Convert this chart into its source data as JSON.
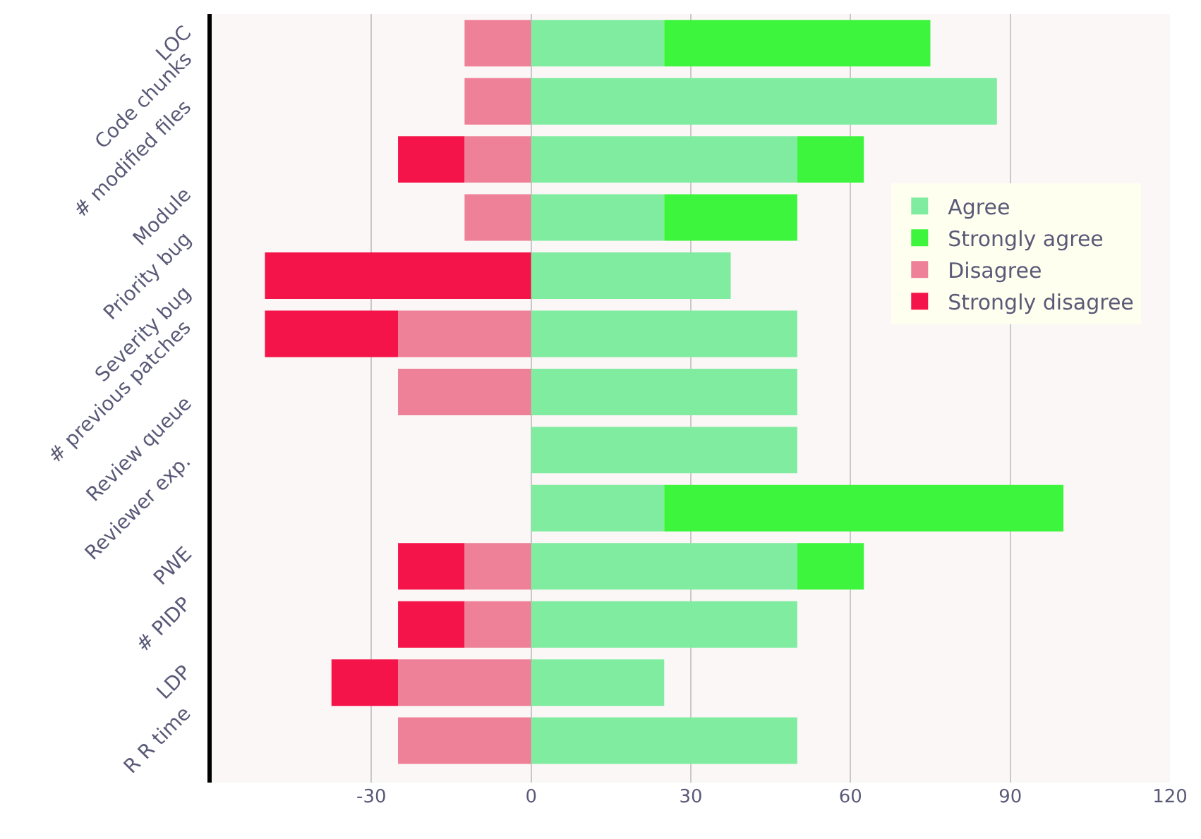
{
  "chart_data": {
    "type": "bar",
    "orientation": "horizontal",
    "stacked": true,
    "categories": [
      "LOC",
      "Code chunks",
      "# modified files",
      "Module",
      "Priority bug",
      "Severity bug",
      "# previous patches",
      "Review queue",
      "Reviewer exp.",
      "PWE",
      "# PIDP",
      "LDP",
      "R R time"
    ],
    "series": [
      {
        "name": "Agree",
        "color": "#80eca0",
        "values": [
          25,
          87.5,
          50,
          25,
          37.5,
          50,
          50,
          50,
          25,
          50,
          50,
          25,
          50
        ]
      },
      {
        "name": "Strongly agree",
        "color": "#3ef53e",
        "values": [
          50,
          null,
          12.5,
          25,
          null,
          null,
          null,
          null,
          75,
          12.5,
          null,
          null,
          null
        ]
      },
      {
        "name": "Disagree",
        "color": "#ee8098",
        "values": [
          -12.5,
          -12.5,
          -12.5,
          -12.5,
          null,
          -25,
          -25,
          null,
          null,
          -12.5,
          -12.5,
          -25,
          -25
        ]
      },
      {
        "name": "Strongly disagree",
        "color": "#f5144a",
        "values": [
          null,
          null,
          -12.5,
          null,
          -50,
          -25,
          null,
          null,
          null,
          -12.5,
          -12.5,
          -12.5,
          null
        ]
      }
    ],
    "xlim": [
      -60,
      120
    ],
    "xticks": [
      -30,
      0,
      30,
      60,
      90,
      120
    ],
    "grid": "x",
    "legend": "top right"
  }
}
